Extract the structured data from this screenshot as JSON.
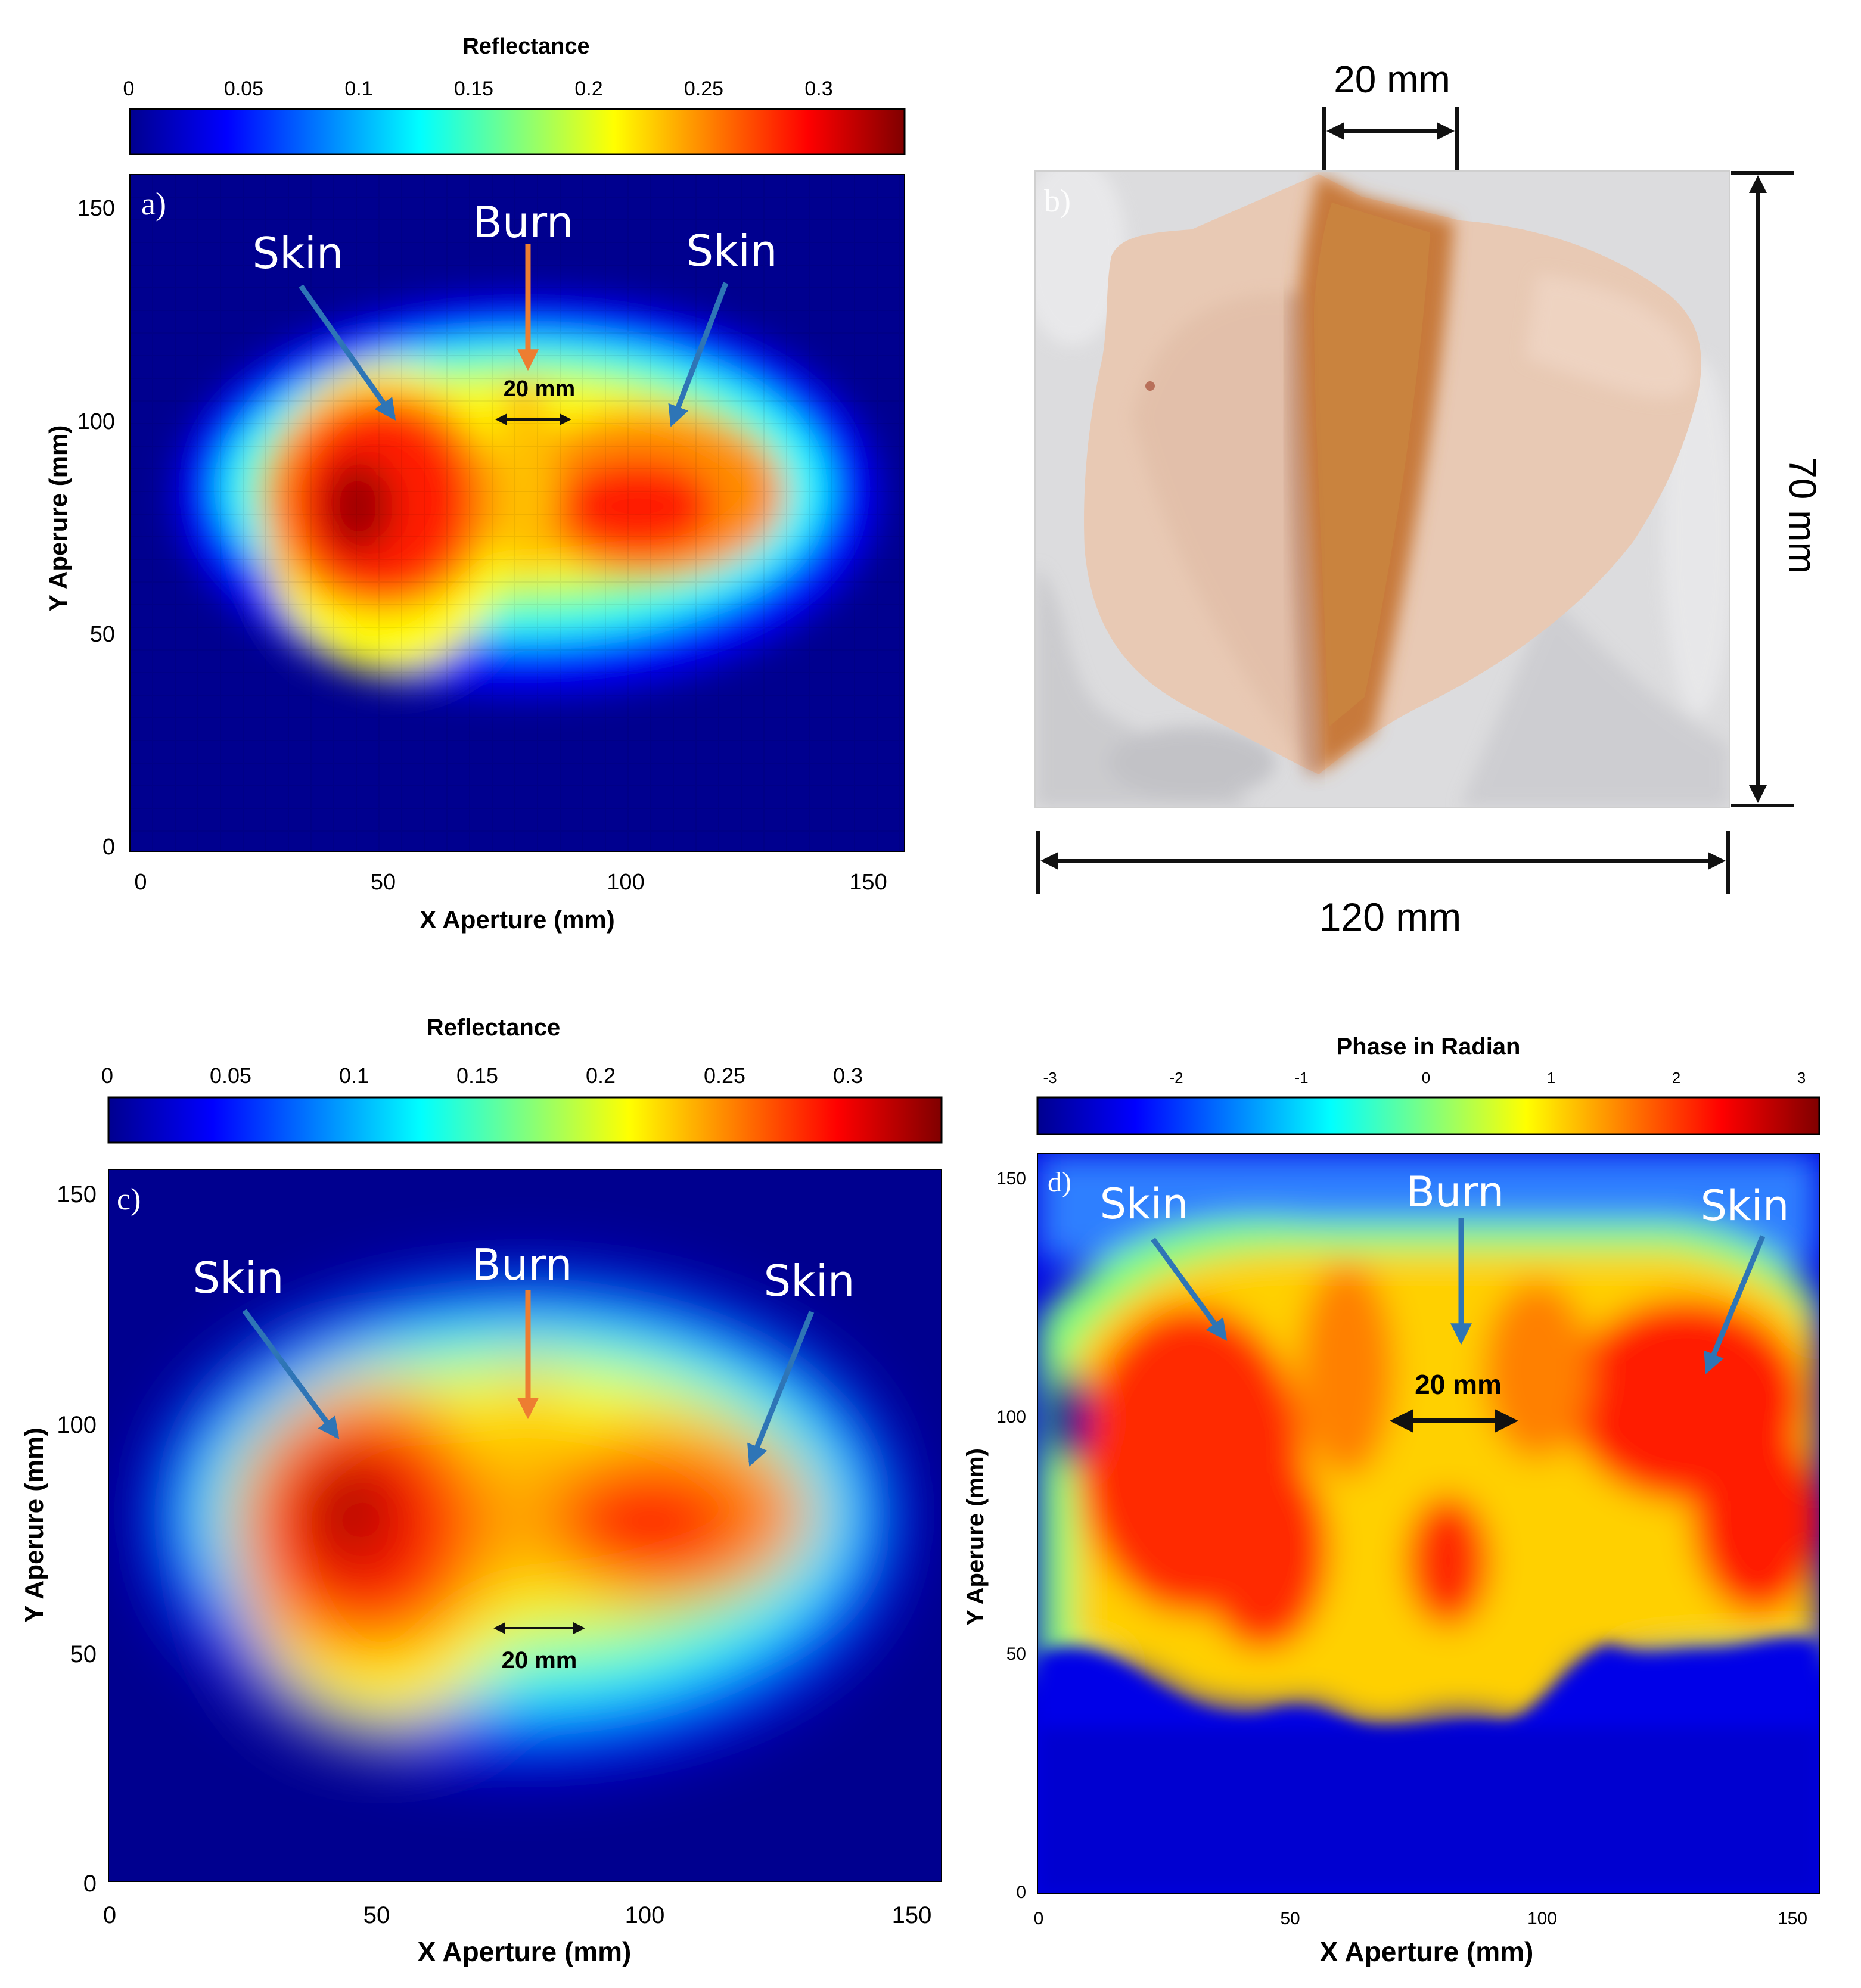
{
  "figure": {
    "panel_a": {
      "letter": "a)",
      "colorbar_title": "Reflectance",
      "colorbar_ticks": [
        "0",
        "0.05",
        "0.1",
        "0.15",
        "0.2",
        "0.25",
        "0.3"
      ],
      "x_label": "X Aperture (mm)",
      "y_label": "Y Aperure (mm)",
      "x_ticks": [
        "0",
        "50",
        "100",
        "150"
      ],
      "y_ticks": [
        "0",
        "50",
        "100",
        "150"
      ],
      "annotations": {
        "skin_left": "Skin",
        "burn": "Burn",
        "skin_right": "Skin",
        "width": "20 mm"
      }
    },
    "panel_b": {
      "letter": "b)",
      "dim_top": "20 mm",
      "dim_right": "70 mm",
      "dim_bottom": "120 mm"
    },
    "panel_c": {
      "letter": "c)",
      "colorbar_title": "Reflectance",
      "colorbar_ticks": [
        "0",
        "0.05",
        "0.1",
        "0.15",
        "0.2",
        "0.25",
        "0.3"
      ],
      "x_label": "X Aperture (mm)",
      "y_label": "Y Aperure (mm)",
      "x_ticks": [
        "0",
        "50",
        "100",
        "150"
      ],
      "y_ticks": [
        "0",
        "50",
        "100",
        "150"
      ],
      "annotations": {
        "skin_left": "Skin",
        "burn": "Burn",
        "skin_right": "Skin",
        "width": "20 mm"
      }
    },
    "panel_d": {
      "letter": "d)",
      "colorbar_title": "Phase in Radian",
      "colorbar_ticks": [
        "-3",
        "-2",
        "-1",
        "0",
        "1",
        "2",
        "3"
      ],
      "x_label": "X Aperture (mm)",
      "y_label": "Y Aperure (mm)",
      "x_ticks": [
        "0",
        "50",
        "100",
        "150"
      ],
      "y_ticks": [
        "0",
        "50",
        "100",
        "150"
      ],
      "annotations": {
        "skin_left": "Skin",
        "burn": "Burn",
        "skin_right": "Skin",
        "width": "20 mm"
      }
    }
  },
  "colors": {
    "jet_dark_blue": "#00008f",
    "jet_blue": "#0000ff",
    "jet_cyan": "#00ffff",
    "jet_yellow": "#ffff00",
    "jet_red": "#ff0000",
    "jet_dark_red": "#800000",
    "arrow_blue": "#2e75b6",
    "arrow_orange": "#ed7d31"
  }
}
